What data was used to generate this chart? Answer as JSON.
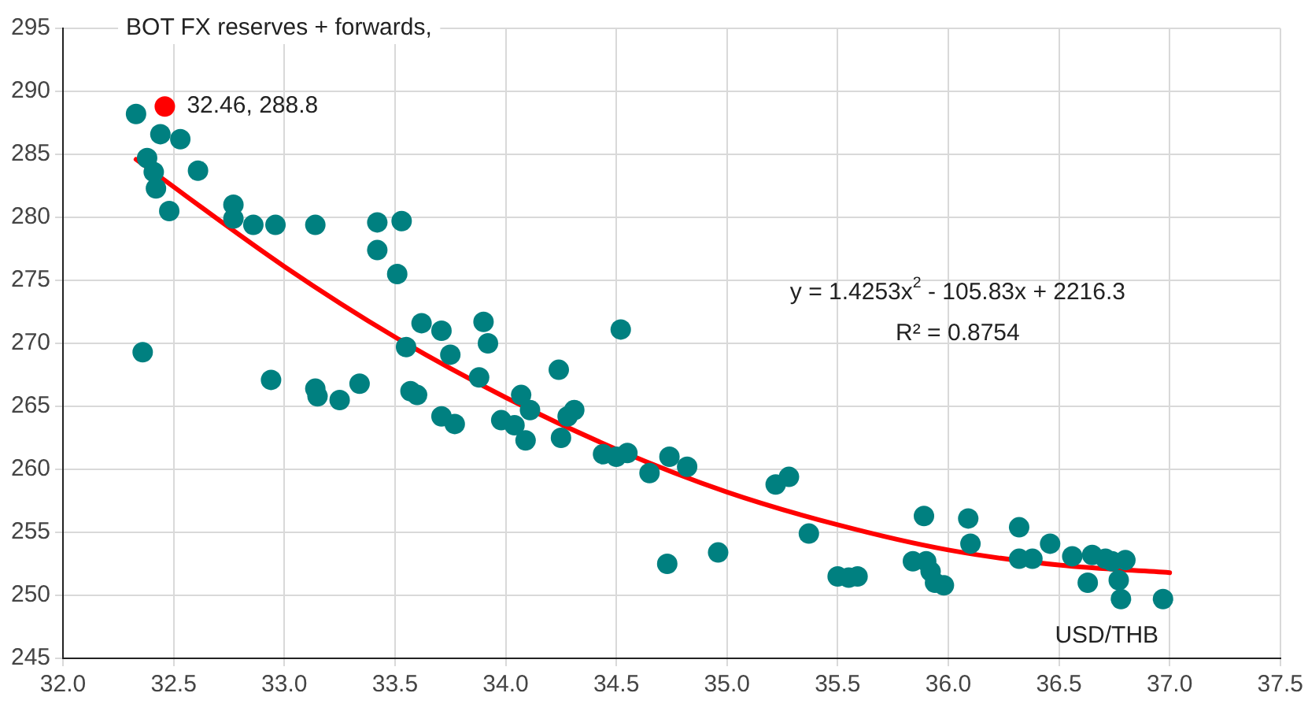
{
  "chart_data": {
    "type": "scatter",
    "ylabel": "BOT FX reserves + forwards,",
    "xlabel": "USD/THB",
    "xlim": [
      32.0,
      37.5
    ],
    "xticks": [
      {
        "value": 32,
        "label": "32.0"
      },
      32.5,
      {
        "value": 33,
        "label": "33.0"
      },
      33.5,
      {
        "value": 34,
        "label": "34.0"
      },
      34.5,
      {
        "value": 35,
        "label": "35.0"
      },
      35.5,
      {
        "value": 36,
        "label": "36.0"
      },
      36.5,
      {
        "value": 37,
        "label": "37.0"
      },
      37.5
    ],
    "ylim": [
      245,
      295
    ],
    "yticks": [
      245,
      250,
      255,
      260,
      265,
      270,
      275,
      280,
      285,
      290,
      295
    ],
    "grid": true,
    "legend": false,
    "marker": "circle",
    "annotations": [
      {
        "text": "32.46, 288.8",
        "x": 32.46,
        "y": 288.8
      },
      "y = 1.4253x$^{2}$ - 105.83x + 2216.3",
      "R² = 0.8754"
    ],
    "series": [
      {
        "color": "#008080",
        "type": "scatter",
        "x": [
          32.33,
          32.44,
          32.53,
          32.38,
          32.41,
          32.42,
          32.48,
          32.61,
          32.77,
          32.77,
          32.86,
          32.96,
          33.14,
          33.42,
          33.53,
          33.42,
          33.51,
          32.36,
          32.94,
          33.14,
          33.15,
          33.25,
          33.34,
          33.62,
          33.71,
          33.55,
          33.75,
          33.57,
          33.6,
          33.71,
          33.77,
          33.9,
          33.92,
          33.88,
          33.98,
          34.04,
          34.07,
          34.11,
          34.09,
          34.24,
          34.25,
          34.28,
          34.31,
          34.52,
          34.44,
          34.5,
          34.55,
          34.65,
          34.74,
          34.82,
          34.73,
          34.96,
          35.22,
          35.28,
          35.37,
          35.5,
          35.55,
          35.59,
          35.89,
          35.84,
          35.9,
          35.92,
          35.94,
          35.98,
          36.09,
          36.1,
          36.32,
          36.32,
          36.38,
          36.46,
          36.56,
          36.63,
          36.65,
          36.71,
          36.74,
          36.8,
          36.77,
          36.78,
          36.97
        ],
        "values": [
          288.2,
          286.6,
          286.2,
          284.7,
          283.6,
          282.3,
          280.5,
          283.7,
          281.0,
          279.9,
          279.4,
          279.4,
          279.4,
          279.6,
          279.7,
          277.4,
          275.5,
          269.3,
          267.1,
          266.4,
          265.8,
          265.5,
          266.8,
          271.6,
          271.0,
          269.7,
          269.1,
          266.2,
          265.9,
          264.2,
          263.6,
          271.7,
          270.0,
          267.3,
          263.9,
          263.5,
          265.9,
          264.7,
          262.3,
          267.9,
          262.5,
          264.2,
          264.7,
          271.1,
          261.2,
          261.0,
          261.3,
          259.7,
          261.0,
          260.2,
          252.5,
          253.4,
          258.8,
          259.4,
          254.9,
          251.5,
          251.4,
          251.5,
          256.3,
          252.7,
          252.7,
          251.9,
          251.0,
          250.8,
          256.1,
          254.1,
          255.4,
          252.9,
          252.9,
          254.1,
          253.1,
          251.0,
          253.2,
          252.9,
          252.7,
          252.8,
          251.2,
          249.7,
          249.7
        ]
      },
      {
        "color": "#ff0000",
        "type": "scatter",
        "x": [
          32.46
        ],
        "values": [
          288.8
        ]
      },
      {
        "color": "#ff0000",
        "type": "line",
        "marker": "none",
        "x": [
          32.33,
          33,
          33.5,
          34,
          34.5,
          35,
          35.5,
          36,
          36.5,
          37
        ],
        "values": [
          284.6,
          276.1,
          270.5,
          265.7,
          261.6,
          258.2,
          255.6,
          253.6,
          252.4,
          251.8
        ]
      }
    ]
  }
}
